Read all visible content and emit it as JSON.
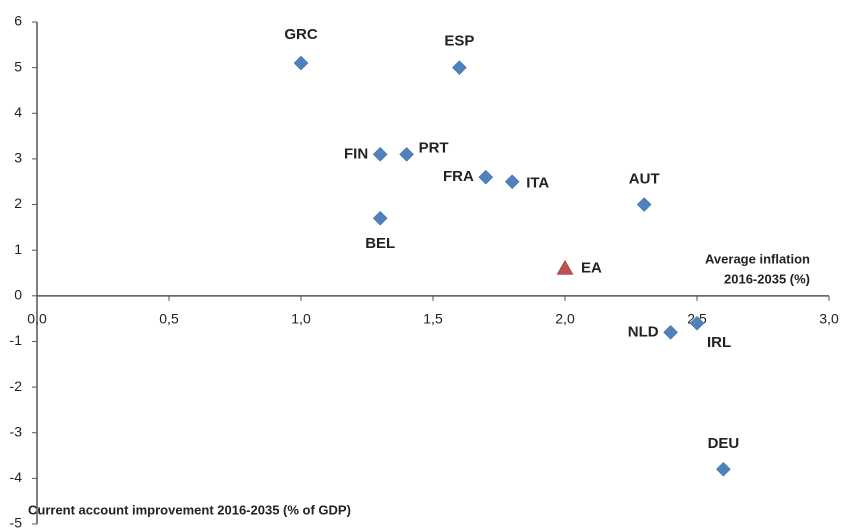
{
  "chart_data": {
    "type": "scatter",
    "x_label": [
      "Average inflation",
      "2016-2035 (%)"
    ],
    "y_label": "Current account improvement 2016-2035 (% of GDP)",
    "series": [
      {
        "color": "#4f81bd",
        "marker": "diamond",
        "x": [
          1.0,
          1.6,
          1.3,
          1.4,
          1.7,
          1.8,
          2.3,
          1.3,
          2.4,
          2.5,
          2.6
        ],
        "values": [
          5.1,
          5.0,
          3.1,
          3.1,
          2.6,
          2.5,
          2.0,
          1.7,
          -0.8,
          -0.6,
          -3.8
        ],
        "labels": [
          "GRC",
          "ESP",
          "FIN",
          "PRT",
          "FRA",
          "ITA",
          "AUT",
          "BEL",
          "NLD",
          "IRL",
          "DEU"
        ]
      },
      {
        "color": "#c0504d",
        "marker": "triangle",
        "x": [
          2.0
        ],
        "values": [
          0.6
        ],
        "labels": [
          "EA"
        ]
      }
    ],
    "xlim": [
      0,
      3
    ],
    "xticks": [
      {
        "value": 0,
        "label": "0,0"
      },
      {
        "value": 0.5,
        "label": "0,5"
      },
      {
        "value": 1,
        "label": "1,0"
      },
      {
        "value": 1.5,
        "label": "1,5"
      },
      {
        "value": 2,
        "label": "2,0"
      },
      {
        "value": 2.5,
        "label": "2,5"
      },
      {
        "value": 3,
        "label": "3,0"
      }
    ],
    "ylim": [
      -5,
      6
    ],
    "yticks": [
      -5,
      -4,
      -3,
      -2,
      -1,
      0,
      1,
      2,
      3,
      4,
      5,
      6
    ]
  }
}
